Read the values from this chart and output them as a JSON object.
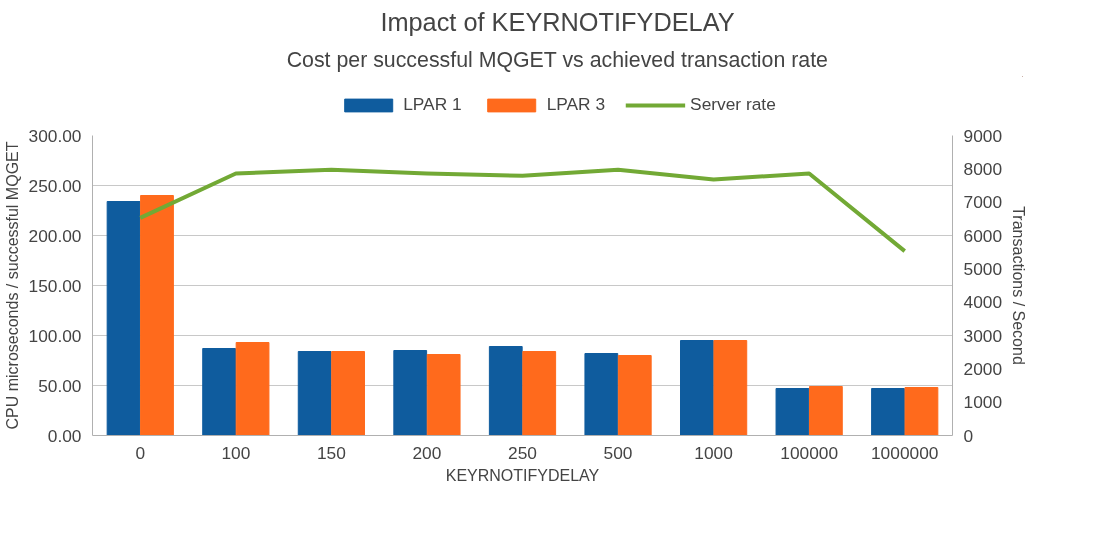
{
  "chart_data": {
    "type": "bar",
    "title": "Impact of KEYRNOTIFYDELAY",
    "subtitle": "Cost per successful MQGET vs achieved transaction rate",
    "xlabel": "KEYRNOTIFYDELAY",
    "ylabel": "CPU microseconds / successful MQGET",
    "y2label": "Transactions / Second",
    "categories": [
      "0",
      "100",
      "150",
      "200",
      "250",
      "500",
      "1000",
      "100000",
      "1000000"
    ],
    "series": [
      {
        "name": "LPAR 1",
        "color": "#0f5c9e",
        "values": [
          234,
          87,
          84,
          85,
          89,
          82,
          95,
          47,
          47
        ]
      },
      {
        "name": "LPAR 3",
        "color": "#ff6a1c",
        "values": [
          240,
          93,
          84,
          81,
          84,
          80,
          95,
          49,
          48
        ]
      },
      {
        "name": "Server rate",
        "type": "line",
        "axis": "y2",
        "color": "#72a935",
        "values": [
          6530,
          7860,
          7970,
          7860,
          7790,
          7970,
          7680,
          7860,
          5530
        ]
      }
    ],
    "ylim": [
      0,
      300
    ],
    "yticks": [
      {
        "value": 0,
        "label": "0.00"
      },
      {
        "value": 50,
        "label": "50.00"
      },
      {
        "value": 100,
        "label": "100.00"
      },
      {
        "value": 150,
        "label": "150.00"
      },
      {
        "value": 200,
        "label": "200.00"
      },
      {
        "value": 250,
        "label": "250.00"
      },
      {
        "value": 300,
        "label": "300.00"
      }
    ],
    "y2lim": [
      0,
      9000
    ],
    "y2ticks": [
      0,
      1000,
      2000,
      3000,
      4000,
      5000,
      6000,
      7000,
      8000,
      9000
    ],
    "grid": "y",
    "legend": "top",
    "marker": "none",
    "line_style": "solid"
  }
}
